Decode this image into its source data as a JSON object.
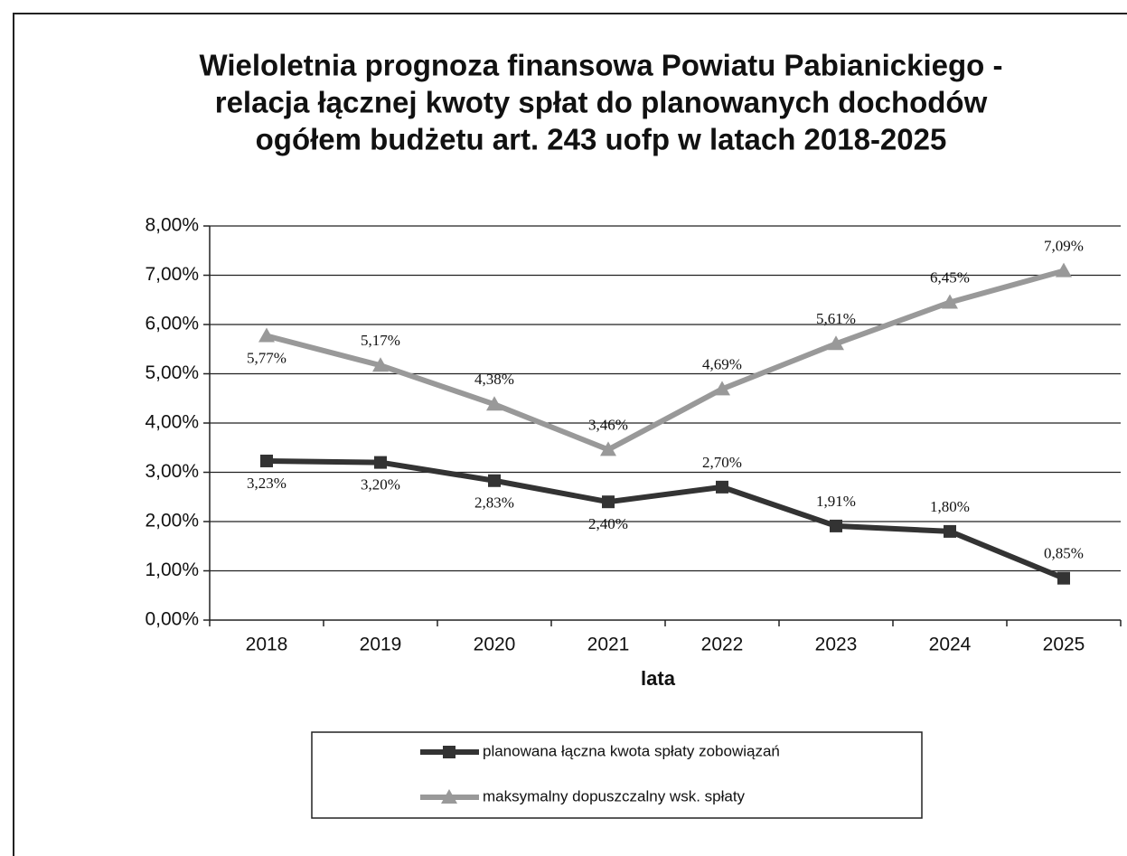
{
  "chart_data": {
    "type": "line",
    "title": [
      "Wieloletnia prognoza finansowa Powiatu Pabianickiego -",
      "relacja łącznej kwoty spłat do planowanych dochodów",
      "ogółem budżetu art. 243 uofp w latach 2018-2025"
    ],
    "x_label": "lata",
    "categories": [
      "2018",
      "2019",
      "2020",
      "2021",
      "2022",
      "2023",
      "2024",
      "2025"
    ],
    "series": [
      {
        "name": "planowana łączna kwota spłaty zobowiązań",
        "color": "#333333",
        "marker": "square",
        "values": [
          3.23,
          3.2,
          2.83,
          2.4,
          2.7,
          1.91,
          1.8,
          0.85
        ],
        "value_labels": [
          "3,23%",
          "3,20%",
          "2,83%",
          "2,40%",
          "2,70%",
          "1,91%",
          "1,80%",
          "0,85%"
        ]
      },
      {
        "name": "maksymalny dopuszczalny wsk. spłaty",
        "color": "#999999",
        "marker": "triangle",
        "values": [
          5.77,
          5.17,
          4.38,
          3.46,
          4.69,
          5.61,
          6.45,
          7.09
        ],
        "value_labels": [
          "5,77%",
          "5,17%",
          "4,38%",
          "3,46%",
          "4,69%",
          "5,61%",
          "6,45%",
          "7,09%"
        ]
      }
    ],
    "ylim": [
      0,
      8
    ],
    "yticks": [
      {
        "value": 0,
        "label": "0,00%"
      },
      {
        "value": 1,
        "label": "1,00%"
      },
      {
        "value": 2,
        "label": "2,00%"
      },
      {
        "value": 3,
        "label": "3,00%"
      },
      {
        "value": 4,
        "label": "4,00%"
      },
      {
        "value": 5,
        "label": "5,00%"
      },
      {
        "value": 6,
        "label": "6,00%"
      },
      {
        "value": 7,
        "label": "7,00%"
      },
      {
        "value": 8,
        "label": "8,00%"
      }
    ],
    "grid": true,
    "legend": "bottom"
  }
}
